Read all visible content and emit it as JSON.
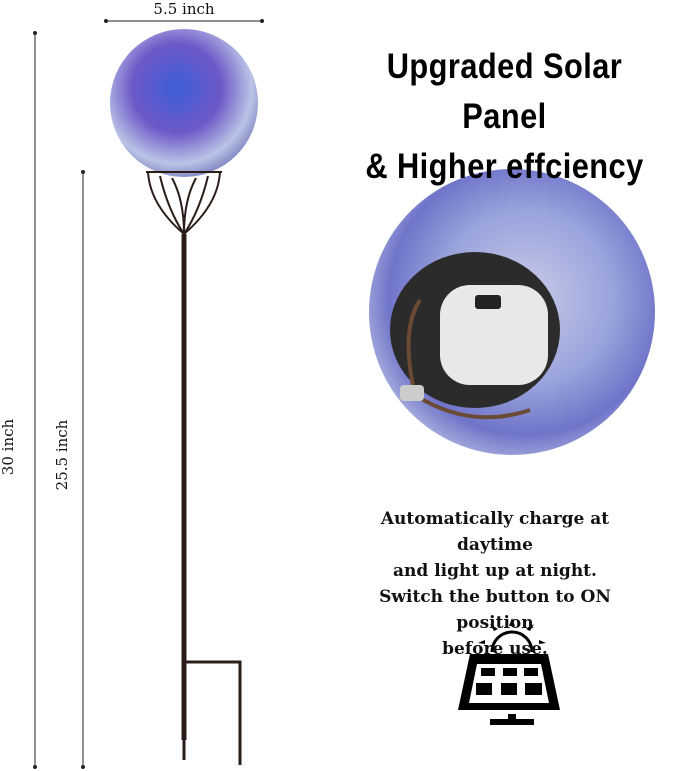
{
  "dimensions": {
    "width_label": "5.5 inch",
    "total_height_label": "30 inch",
    "stake_height_label": "25.5 inch"
  },
  "heading": {
    "line1": "Upgraded Solar Panel",
    "line2": "& Higher effciency"
  },
  "description": {
    "line1": "Automatically charge at daytime",
    "line2": "and light up at night.",
    "line3": "Switch the button to ON position",
    "line4": "before use."
  },
  "icons": [
    "solar-panel-icon",
    "sun-icon"
  ],
  "colors": {
    "globe_blue": "#4a5fd0",
    "globe_purple": "#8a6fd8",
    "stake": "#2a1d18"
  }
}
